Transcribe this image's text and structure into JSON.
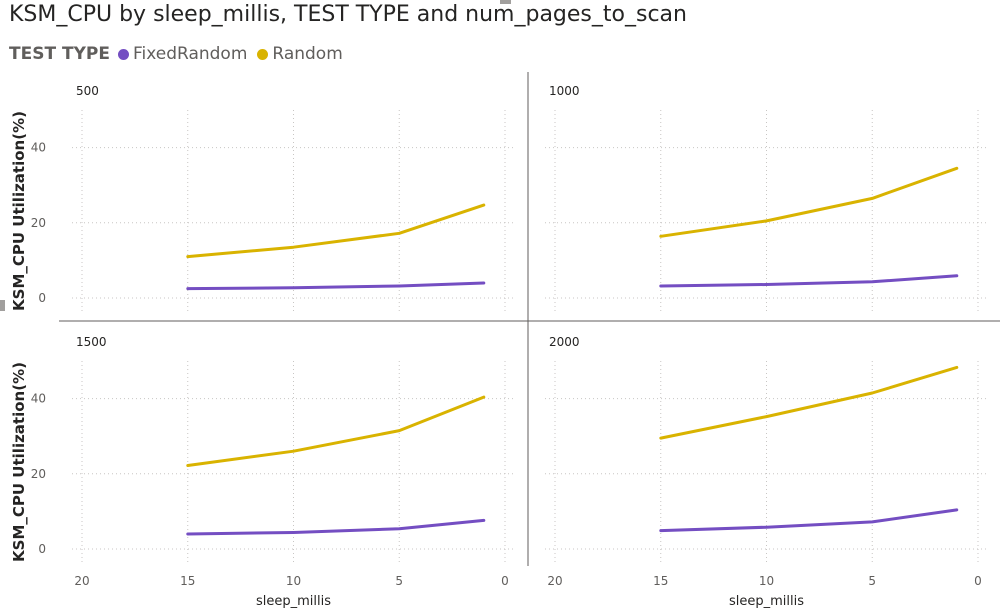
{
  "title": "KSM_CPU by sleep_millis, TEST TYPE and num_pages_to_scan",
  "legend": {
    "title": "TEST TYPE",
    "items": [
      {
        "label": "FixedRandom",
        "color": "#744EC2"
      },
      {
        "label": "Random",
        "color": "#D9B300"
      }
    ]
  },
  "chart_data": {
    "type": "line",
    "layout": "small-multiples",
    "xlabel": "sleep_millis",
    "ylabel": "KSM_CPU Utilization(%)",
    "x_reversed": true,
    "xlim": [
      0,
      20
    ],
    "ylim": [
      0,
      50
    ],
    "xticks": [
      20,
      15,
      10,
      5,
      0
    ],
    "yticks": [
      0,
      20,
      40
    ],
    "grid": true,
    "panels": [
      {
        "label": "500",
        "x": [
          15,
          10,
          5,
          1
        ],
        "series": [
          {
            "name": "FixedRandom",
            "values": [
              2.5,
              2.7,
              3.2,
              4.0
            ]
          },
          {
            "name": "Random",
            "values": [
              11.0,
              13.5,
              17.2,
              24.7
            ]
          }
        ]
      },
      {
        "label": "1000",
        "x": [
          15,
          10,
          5,
          1
        ],
        "series": [
          {
            "name": "FixedRandom",
            "values": [
              3.2,
              3.6,
              4.3,
              5.9
            ]
          },
          {
            "name": "Random",
            "values": [
              16.4,
              20.5,
              26.5,
              34.5
            ]
          }
        ]
      },
      {
        "label": "1500",
        "x": [
          15,
          10,
          5,
          1
        ],
        "series": [
          {
            "name": "FixedRandom",
            "values": [
              4.0,
              4.4,
              5.4,
              7.6
            ]
          },
          {
            "name": "Random",
            "values": [
              22.2,
              26.0,
              31.5,
              40.4
            ]
          }
        ]
      },
      {
        "label": "2000",
        "x": [
          15,
          10,
          5,
          1
        ],
        "series": [
          {
            "name": "FixedRandom",
            "values": [
              4.9,
              5.8,
              7.2,
              10.4
            ]
          },
          {
            "name": "Random",
            "values": [
              29.5,
              35.2,
              41.5,
              48.3
            ]
          }
        ]
      }
    ]
  }
}
